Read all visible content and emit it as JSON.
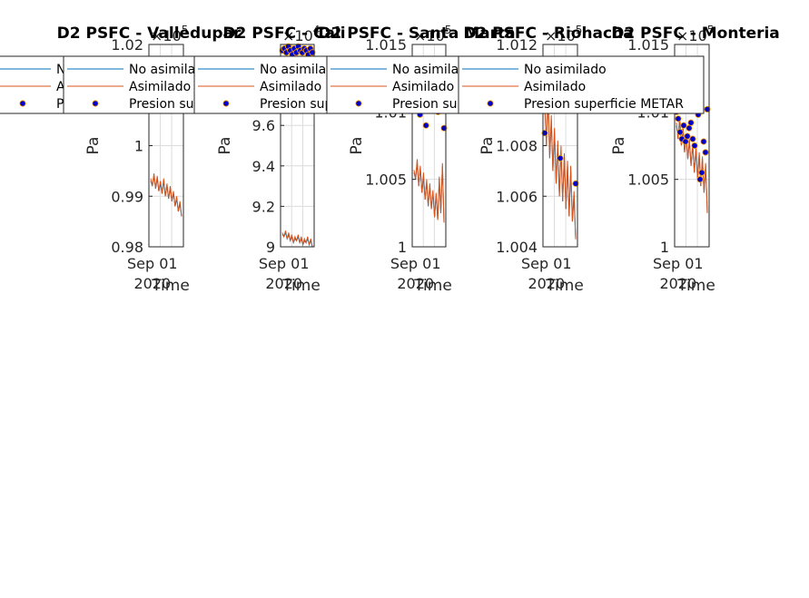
{
  "chart_data": [
    {
      "type": "line",
      "title": "D2 PSFC - Valledupar",
      "xlabel": "Time",
      "ylabel": "Pa",
      "exponent": "5",
      "x_tick_label": "Sep 01",
      "x_tick_year": "2020",
      "ylim": [
        0.98,
        1.02
      ],
      "y_ticks": [
        "0.98",
        "0.99",
        "1",
        "1.01",
        "1.02"
      ],
      "grid": true,
      "legend": {
        "placement": "top-left",
        "entries": [
          "No asimilado",
          "Asimilado",
          "Presion superficie METAR"
        ]
      },
      "series": [
        {
          "name": "No asimilado",
          "color": "#0072BD",
          "values": [
            0.993,
            0.992,
            0.994,
            0.9915,
            0.9935,
            0.991,
            0.9925,
            0.9905,
            0.993,
            0.99,
            0.992,
            0.9895,
            0.9915,
            0.989,
            0.9905,
            0.988,
            0.9895,
            0.987,
            0.9885,
            0.986
          ]
        },
        {
          "name": "Asimilado",
          "color": "#D95319",
          "values": [
            0.9935,
            0.992,
            0.9945,
            0.9915,
            0.994,
            0.991,
            0.993,
            0.9905,
            0.9935,
            0.99,
            0.9925,
            0.9895,
            0.992,
            0.989,
            0.991,
            0.988,
            0.99,
            0.987,
            0.989,
            0.986
          ]
        },
        {
          "name": "Presion superficie METAR",
          "color": "#0000CD",
          "values": []
        }
      ]
    },
    {
      "type": "line",
      "title": "D2 PSFC - Cali",
      "xlabel": "Time",
      "ylabel": "Pa",
      "exponent": "4",
      "x_tick_label": "Sep 01",
      "x_tick_year": "2020",
      "ylim": [
        9.0,
        10.0
      ],
      "y_ticks": [
        "9",
        "9.2",
        "9.4",
        "9.6"
      ],
      "grid": true,
      "legend": {
        "placement": "top-left",
        "entries": [
          "No asimilado",
          "Asimilado",
          "Presion superficie METAR"
        ]
      },
      "series": [
        {
          "name": "No asimilado",
          "color": "#0072BD",
          "values": [
            9.06,
            9.05,
            9.07,
            9.04,
            9.06,
            9.03,
            9.05,
            9.02,
            9.04,
            9.03,
            9.05,
            9.02,
            9.04,
            9.01,
            9.03,
            9.02,
            9.04,
            9.01,
            9.03,
            9.0
          ]
        },
        {
          "name": "Asimilado",
          "color": "#D95319",
          "values": [
            9.07,
            9.05,
            9.08,
            9.04,
            9.07,
            9.03,
            9.06,
            9.02,
            9.05,
            9.03,
            9.06,
            9.02,
            9.05,
            9.01,
            9.04,
            9.02,
            9.05,
            9.01,
            9.04,
            9.0
          ]
        },
        {
          "name": "Presion superficie METAR",
          "color": "#0000CD",
          "values": [
            9.97,
            9.98,
            9.96,
            9.99,
            9.97,
            9.95,
            9.98,
            9.96,
            9.99,
            9.97,
            9.96,
            9.98,
            9.97,
            9.95,
            9.98,
            9.96
          ]
        }
      ]
    },
    {
      "type": "line",
      "title": "D2 PSFC - Santa Marta",
      "xlabel": "Time",
      "ylabel": "Pa",
      "exponent": "5",
      "x_tick_label": "Sep 01",
      "x_tick_year": "2020",
      "ylim": [
        1.0,
        1.015
      ],
      "y_ticks": [
        "1",
        "1.005",
        "1.01",
        "1.015"
      ],
      "grid": true,
      "legend": {
        "placement": "top-left",
        "entries": [
          "No asimilado",
          "Asimilado",
          "Presion superficie METAR"
        ]
      },
      "series": [
        {
          "name": "No asimilado",
          "color": "#0072BD",
          "values": [
            1.0055,
            1.005,
            1.0062,
            1.0045,
            1.0058,
            1.004,
            1.0052,
            1.0035,
            1.0048,
            1.003,
            1.0045,
            1.0028,
            1.004,
            1.0022,
            1.0038,
            1.002,
            1.005,
            1.0025,
            1.006,
            1.0018
          ]
        },
        {
          "name": "Asimilado",
          "color": "#D95319",
          "values": [
            1.0057,
            1.005,
            1.0065,
            1.0045,
            1.006,
            1.004,
            1.0055,
            1.0035,
            1.005,
            1.003,
            1.0047,
            1.0028,
            1.0042,
            1.0022,
            1.004,
            1.002,
            1.0052,
            1.0025,
            1.0062,
            1.0018
          ]
        },
        {
          "name": "Presion superficie METAR",
          "color": "#0000CD",
          "values": [
            1.0102,
            1.0098,
            1.009,
            1.0105,
            1.01,
            1.0088
          ]
        }
      ]
    },
    {
      "type": "line",
      "title": "D2 PSFC - Riohacha",
      "xlabel": "Time",
      "ylabel": "Pa",
      "exponent": "5",
      "x_tick_label": "Sep 01",
      "x_tick_year": "2020",
      "ylim": [
        1.004,
        1.012
      ],
      "y_ticks": [
        "1.004",
        "1.006",
        "1.008",
        "1.01",
        "1.012"
      ],
      "grid": true,
      "legend": {
        "placement": "top-left",
        "entries": [
          "No asimilado",
          "Asimilado",
          "Presion superficie METAR"
        ]
      },
      "series": [
        {
          "name": "No asimilado",
          "color": "#0072BD",
          "values": [
            1.0095,
            1.008,
            1.01,
            1.0075,
            1.009,
            1.007,
            1.0085,
            1.0065,
            1.008,
            1.006,
            1.0078,
            1.0058,
            1.0075,
            1.0055,
            1.0072,
            1.0052,
            1.007,
            1.005,
            1.006,
            1.0043
          ]
        },
        {
          "name": "Asimilado",
          "color": "#D95319",
          "values": [
            1.0097,
            1.008,
            1.0102,
            1.0075,
            1.0092,
            1.007,
            1.0087,
            1.0065,
            1.0082,
            1.006,
            1.008,
            1.0058,
            1.0077,
            1.0055,
            1.0074,
            1.0052,
            1.0072,
            1.005,
            1.0062,
            1.0043
          ]
        },
        {
          "name": "Presion superficie METAR",
          "color": "#0000CD",
          "values": [
            1.0085,
            1.0075,
            1.0065
          ]
        }
      ]
    },
    {
      "type": "line",
      "title": "D2 PSFC - Monteria",
      "xlabel": "Time",
      "ylabel": "Pa",
      "exponent": "5",
      "x_tick_label": "Sep 01",
      "x_tick_year": "2020",
      "ylim": [
        1.0,
        1.015
      ],
      "y_ticks": [
        "1",
        "1.005",
        "1.01",
        "1.015"
      ],
      "grid": true,
      "legend": {
        "placement": "top-left",
        "entries": [
          "No asimilado",
          "Asimilado",
          "Presion superficie METAR"
        ]
      },
      "series": [
        {
          "name": "No asimilado",
          "color": "#0072BD",
          "values": [
            1.009,
            1.008,
            1.0095,
            1.0075,
            1.0088,
            1.007,
            1.0082,
            1.0065,
            1.0078,
            1.006,
            1.0075,
            1.0055,
            1.0072,
            1.005,
            1.0068,
            1.0045,
            1.0065,
            1.004,
            1.006,
            1.0025
          ]
        },
        {
          "name": "Asimilado",
          "color": "#D95319",
          "values": [
            1.0092,
            1.008,
            1.0097,
            1.0075,
            1.009,
            1.007,
            1.0084,
            1.0065,
            1.008,
            1.006,
            1.0077,
            1.0055,
            1.0074,
            1.005,
            1.007,
            1.0045,
            1.0067,
            1.004,
            1.0062,
            1.0025
          ]
        },
        {
          "name": "Presion superficie METAR",
          "color": "#0000CD",
          "values": [
            1.01,
            1.0095,
            1.0085,
            1.008,
            1.009,
            1.0078,
            1.0082,
            1.0088,
            1.0092,
            1.008,
            1.0075,
            1.0105,
            1.0098,
            1.005,
            1.0055,
            1.0078,
            1.007,
            1.0102
          ]
        }
      ]
    }
  ]
}
